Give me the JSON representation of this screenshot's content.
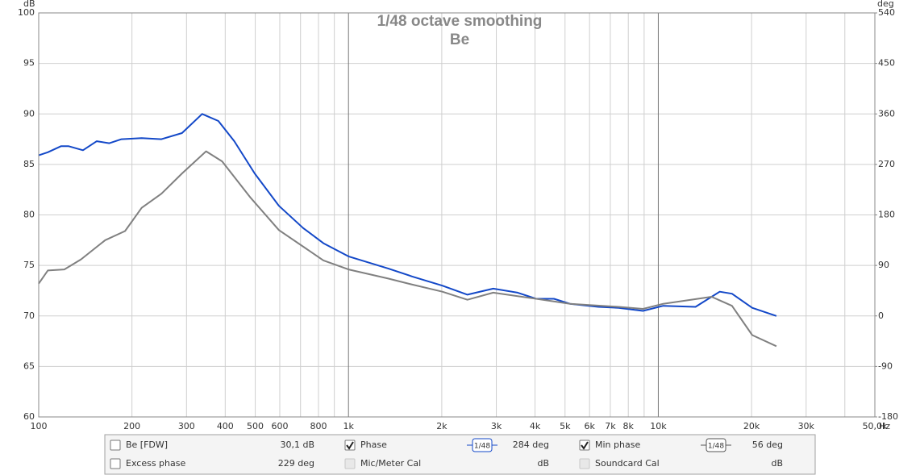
{
  "chart_data": {
    "type": "line",
    "title": "1/48 octave smoothing",
    "subtitle": "Be",
    "ylabel": "dB",
    "y2label": "deg",
    "xlabel": "Hz",
    "xscale": "log",
    "grid": true,
    "xlim": [
      100,
      50000
    ],
    "ylim": [
      60,
      100
    ],
    "y2lim": [
      -180,
      540
    ],
    "xticks": [
      100,
      200,
      300,
      400,
      500,
      600,
      800,
      {
        "value": 1000,
        "label": "1k"
      },
      {
        "value": 2000,
        "label": "2k"
      },
      {
        "value": 3000,
        "label": "3k"
      },
      {
        "value": 4000,
        "label": "4k"
      },
      {
        "value": 5000,
        "label": "5k"
      },
      {
        "value": 6000,
        "label": "6k"
      },
      {
        "value": 7000,
        "label": "7k"
      },
      {
        "value": 8000,
        "label": "8k"
      },
      {
        "value": 10000,
        "label": "10k"
      },
      {
        "value": 20000,
        "label": "20k"
      },
      {
        "value": 30000,
        "label": "30k"
      },
      {
        "value": 50000,
        "label": "50,0k"
      }
    ],
    "xminor": [
      700,
      900,
      9000,
      40000
    ],
    "yticks": [
      60,
      65,
      70,
      75,
      80,
      85,
      90,
      95,
      100
    ],
    "y2ticks": [
      -180,
      -90,
      0,
      90,
      180,
      270,
      360,
      450,
      540
    ],
    "series": [
      {
        "name": "Be [FDW]",
        "color": "#1348c8",
        "x": [
          100,
          107,
          118,
          125,
          139,
          154,
          169,
          185,
          215,
          249,
          290,
          337,
          380,
          428,
          498,
          596,
          714,
          830,
          1000,
          1343,
          1607,
          2009,
          2420,
          2932,
          3515,
          4034,
          4603,
          5190,
          6408,
          7447,
          8920,
          10370,
          13190,
          15780,
          17290,
          20090,
          24050
        ],
        "values": [
          85.9,
          86.2,
          86.8,
          86.8,
          86.4,
          87.3,
          87.1,
          87.5,
          87.6,
          87.5,
          88.1,
          90.0,
          89.3,
          87.3,
          84.1,
          80.9,
          78.7,
          77.2,
          75.9,
          74.7,
          73.9,
          73.0,
          72.1,
          72.7,
          72.3,
          71.7,
          71.7,
          71.2,
          70.9,
          70.8,
          70.5,
          71.0,
          70.9,
          72.4,
          72.2,
          70.8,
          70.0
        ]
      },
      {
        "color": "#808080",
        "x": [
          100,
          107,
          121,
          137,
          164,
          190,
          215,
          249,
          290,
          347,
          391,
          483,
          596,
          830,
          1000,
          1343,
          1607,
          2009,
          2420,
          2932,
          4034,
          5190,
          7447,
          8920,
          10370,
          14860,
          17290,
          20090,
          24050
        ],
        "values": [
          73.2,
          74.5,
          74.6,
          75.6,
          77.5,
          78.4,
          80.7,
          82.1,
          84.1,
          86.3,
          85.3,
          81.7,
          78.5,
          75.5,
          74.6,
          73.7,
          73.1,
          72.4,
          71.6,
          72.3,
          71.7,
          71.2,
          70.9,
          70.7,
          71.2,
          71.9,
          71.0,
          68.1,
          67.0
        ]
      }
    ]
  },
  "panel": {
    "rows": [
      [
        {
          "label": "Be [FDW]",
          "checked": false,
          "value": "30,1 dB",
          "label_color": "#1348c8",
          "value_color": "#333333"
        },
        {
          "label": "Phase",
          "checked": true,
          "smoothing": "1/48",
          "value": "284 deg",
          "label_color": "#1348c8",
          "value_color": "#1348c8"
        },
        {
          "label": "Min phase",
          "checked": true,
          "smoothing": "1/48",
          "value": "56 deg",
          "label_color": "#666666",
          "value_color": "#666666"
        }
      ],
      [
        {
          "label": "Excess phase",
          "checked": false,
          "value": "229 deg",
          "label_color": "#333333",
          "value_color": "#333333"
        },
        {
          "label": "Mic/Meter Cal",
          "disabled": true,
          "value": "dB",
          "label_color": "#aaaaaa",
          "value_color": "#aaaaaa"
        },
        {
          "label": "Soundcard Cal",
          "disabled": true,
          "value": "dB",
          "label_color": "#aaaaaa",
          "value_color": "#aaaaaa"
        }
      ]
    ]
  }
}
